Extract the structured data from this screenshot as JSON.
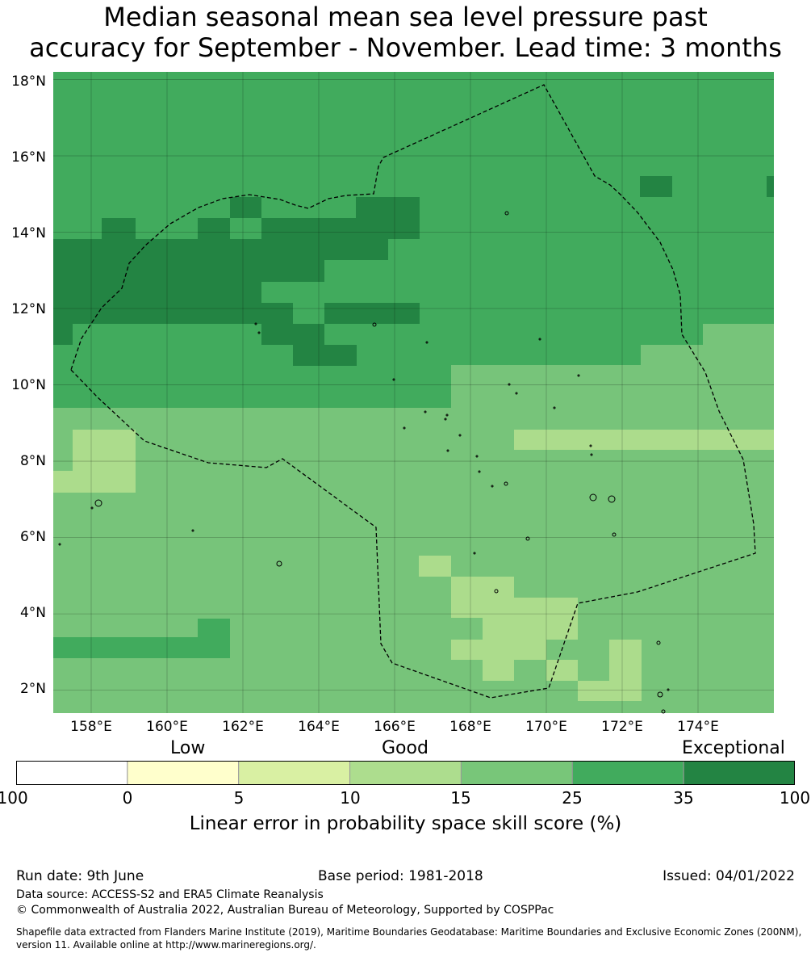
{
  "title_line1": "Median seasonal mean sea level pressure past",
  "title_line2": "accuracy for September - November. Lead time: 3 months",
  "map": {
    "lon_range": [
      157.0,
      176.0
    ],
    "lat_range": [
      1.4,
      18.2
    ],
    "x_ticks": [
      "158°E",
      "160°E",
      "162°E",
      "164°E",
      "166°E",
      "168°E",
      "170°E",
      "172°E",
      "174°E"
    ],
    "y_ticks": [
      "18°N",
      "16°N",
      "14°N",
      "12°N",
      "10°N",
      "8°N",
      "6°N",
      "4°N",
      "2°N"
    ],
    "grid": true,
    "skill_levels": {
      "c10": "#acdc8c",
      "c15": "#77c47a",
      "c25": "#41ab5d",
      "c35": "#238443"
    },
    "boundary_style": "dashed",
    "boundary_color": "#000000"
  },
  "colorbar": {
    "categories": [
      "Low",
      "Good",
      "Exceptional"
    ],
    "ticks": [
      "-100",
      "0",
      "5",
      "10",
      "15",
      "25",
      "35",
      "100"
    ],
    "colors": [
      "#ffffff",
      "#ffffcc",
      "#d9f0a3",
      "#addd8e",
      "#78c679",
      "#41ab5d",
      "#238443"
    ],
    "label": "Linear error in probability space skill score (%)"
  },
  "footer": {
    "run_date": "Run date: 9th June",
    "base_period": "Base period: 1981-2018",
    "issued": "Issued: 04/01/2022",
    "data_source": "Data source: ACCESS-S2 and ERA5 Climate Reanalysis",
    "copyright": "© Commonwealth of Australia 2022, Australian Bureau of Meteorology, Supported by COSPPac",
    "shapefile": "Shapefile data extracted from Flanders Marine Institute (2019), Maritime Boundaries Geodatabase: Maritime Boundaries and Exclusive Economic Zones (200NM), version 11. Available online at http://www.marineregions.org/."
  }
}
